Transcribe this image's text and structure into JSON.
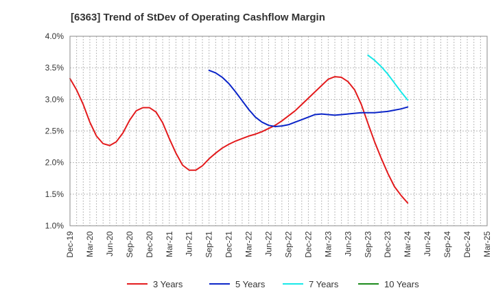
{
  "chart_data": {
    "type": "line",
    "title": "[6363]  Trend of StDev of Operating Cashflow Margin",
    "xlabel": "",
    "ylabel": "",
    "x_ticks": [
      "Dec-19",
      "Mar-20",
      "Jun-20",
      "Sep-20",
      "Dec-20",
      "Mar-21",
      "Jun-21",
      "Sep-21",
      "Dec-21",
      "Mar-22",
      "Jun-22",
      "Sep-22",
      "Dec-22",
      "Mar-23",
      "Jun-23",
      "Sep-23",
      "Dec-23",
      "Mar-24",
      "Jun-24",
      "Sep-24",
      "Dec-24",
      "Mar-25"
    ],
    "y_ticks": [
      "1.0%",
      "1.5%",
      "2.0%",
      "2.5%",
      "3.0%",
      "3.5%",
      "4.0%"
    ],
    "ylim": [
      1.0,
      4.0
    ],
    "grid": true,
    "legend_position": "bottom",
    "series": [
      {
        "name": "3 Years",
        "color": "#e31a1c",
        "x": [
          "2019-12",
          "2020-01",
          "2020-02",
          "2020-03",
          "2020-04",
          "2020-05",
          "2020-06",
          "2020-07",
          "2020-08",
          "2020-09",
          "2020-10",
          "2020-11",
          "2020-12",
          "2021-01",
          "2021-02",
          "2021-03",
          "2021-04",
          "2021-05",
          "2021-06",
          "2021-07",
          "2021-08",
          "2021-09",
          "2021-10",
          "2021-11",
          "2021-12",
          "2022-01",
          "2022-02",
          "2022-03",
          "2022-04",
          "2022-05",
          "2022-06",
          "2022-07",
          "2022-08",
          "2022-09",
          "2022-10",
          "2022-11",
          "2022-12",
          "2023-01",
          "2023-02",
          "2023-03",
          "2023-04",
          "2023-05",
          "2023-06",
          "2023-07",
          "2023-08",
          "2023-09",
          "2023-10",
          "2023-11",
          "2023-12",
          "2024-01",
          "2024-02",
          "2024-03"
        ],
        "values": [
          3.33,
          3.15,
          2.92,
          2.64,
          2.42,
          2.3,
          2.27,
          2.33,
          2.47,
          2.67,
          2.82,
          2.87,
          2.87,
          2.8,
          2.63,
          2.38,
          2.15,
          1.96,
          1.88,
          1.88,
          1.95,
          2.06,
          2.15,
          2.23,
          2.29,
          2.34,
          2.38,
          2.42,
          2.45,
          2.49,
          2.54,
          2.59,
          2.66,
          2.74,
          2.82,
          2.92,
          3.02,
          3.12,
          3.22,
          3.32,
          3.36,
          3.35,
          3.28,
          3.15,
          2.92,
          2.62,
          2.33,
          2.07,
          1.83,
          1.62,
          1.48,
          1.36
        ]
      },
      {
        "name": "5 Years",
        "color": "#0a24c8",
        "x": [
          "2021-09",
          "2021-10",
          "2021-11",
          "2021-12",
          "2022-01",
          "2022-02",
          "2022-03",
          "2022-04",
          "2022-05",
          "2022-06",
          "2022-07",
          "2022-08",
          "2022-09",
          "2022-10",
          "2022-11",
          "2022-12",
          "2023-01",
          "2023-02",
          "2023-03",
          "2023-04",
          "2023-05",
          "2023-06",
          "2023-07",
          "2023-08",
          "2023-09",
          "2023-10",
          "2023-11",
          "2023-12",
          "2024-01",
          "2024-02",
          "2024-03"
        ],
        "values": [
          3.46,
          3.42,
          3.35,
          3.25,
          3.12,
          2.98,
          2.84,
          2.72,
          2.64,
          2.59,
          2.57,
          2.58,
          2.6,
          2.64,
          2.68,
          2.72,
          2.76,
          2.77,
          2.76,
          2.75,
          2.76,
          2.77,
          2.78,
          2.79,
          2.79,
          2.79,
          2.8,
          2.81,
          2.83,
          2.85,
          2.88
        ]
      },
      {
        "name": "7 Years",
        "color": "#16e8e8",
        "x": [
          "2023-09",
          "2023-10",
          "2023-11",
          "2023-12",
          "2024-01",
          "2024-02",
          "2024-03"
        ],
        "values": [
          3.7,
          3.62,
          3.52,
          3.4,
          3.26,
          3.12,
          2.99
        ]
      },
      {
        "name": "10 Years",
        "color": "#1a8a1a",
        "x": [],
        "values": []
      }
    ]
  }
}
